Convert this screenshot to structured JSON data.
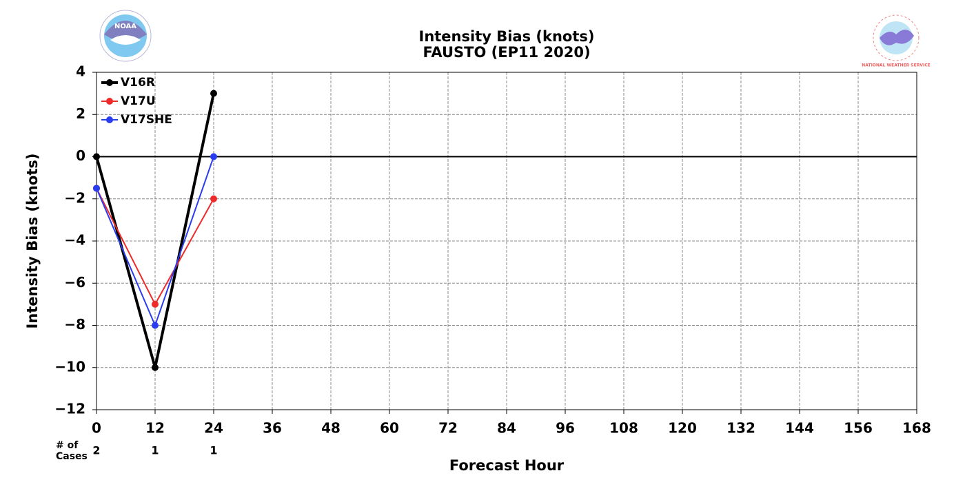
{
  "chart_data": {
    "type": "line",
    "title": "Intensity Bias (knots)",
    "subtitle": "FAUSTO (EP11 2020)",
    "x_label": "Forecast Hour",
    "y_label": "Intensity Bias (knots)",
    "logos": {
      "left": "NOAA",
      "right": "NATIONAL WEATHER SERVICE"
    },
    "x": [
      0,
      12,
      24
    ],
    "series": [
      {
        "name": "V16R",
        "color": "#000000",
        "values": [
          0,
          -10,
          3
        ]
      },
      {
        "name": "V17U",
        "color": "#ee2a2a",
        "values": [
          -1.5,
          -7,
          -2
        ]
      },
      {
        "name": "V17SHE",
        "color": "#2a3cf0",
        "values": [
          -1.5,
          -8,
          0
        ]
      }
    ],
    "cases": {
      "label": [
        "# of",
        "Cases"
      ],
      "values": [
        2,
        1,
        1
      ]
    },
    "xlim": [
      0,
      168
    ],
    "xticks": [
      0,
      12,
      24,
      36,
      48,
      60,
      72,
      84,
      96,
      108,
      120,
      132,
      144,
      156,
      168
    ],
    "ylim": [
      -12,
      4
    ],
    "yticks": [
      {
        "value": -12,
        "label": "−12"
      },
      {
        "value": -10,
        "label": "−10"
      },
      {
        "value": -8,
        "label": "−8"
      },
      {
        "value": -6,
        "label": "−6"
      },
      {
        "value": -4,
        "label": "−4"
      },
      {
        "value": -2,
        "label": "−2"
      },
      0,
      2,
      4
    ],
    "grid": true,
    "legend": "upper left"
  }
}
